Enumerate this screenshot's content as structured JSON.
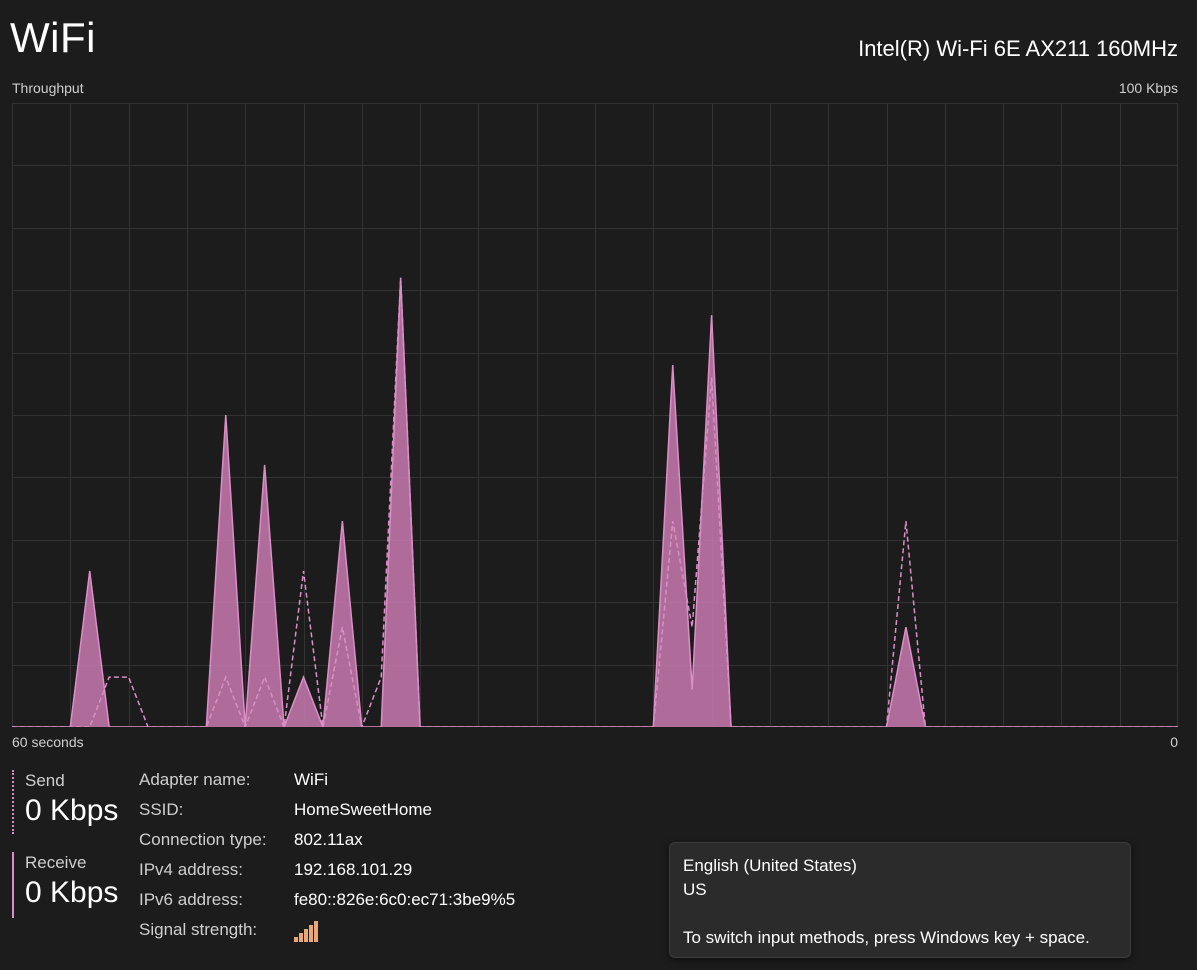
{
  "header": {
    "title": "WiFi",
    "adapter": "Intel(R) Wi-Fi 6E AX211 160MHz"
  },
  "chart_labels": {
    "title": "Throughput",
    "max": "100 Kbps",
    "left": "60 seconds",
    "right": "0"
  },
  "colors": {
    "background": "#1c1c1c",
    "accent": "#d98fc6",
    "fill": "#c97ab0",
    "grid": "#333333"
  },
  "chart_data": {
    "type": "area",
    "title": "Throughput",
    "xlabel": "60 seconds",
    "ylabel": "",
    "xlim": [
      60,
      0
    ],
    "ylim": [
      0,
      100
    ],
    "unit": "Kbps",
    "grid": true,
    "series": [
      {
        "name": "Receive",
        "style": "solid-filled",
        "values": [
          0,
          0,
          0,
          0,
          25,
          0,
          0,
          0,
          0,
          0,
          0,
          50,
          0,
          42,
          0,
          8,
          0,
          33,
          0,
          0,
          72,
          0,
          0,
          0,
          0,
          0,
          0,
          0,
          0,
          0,
          0,
          0,
          0,
          0,
          58,
          6,
          66,
          0,
          0,
          0,
          0,
          0,
          0,
          0,
          0,
          0,
          16,
          0,
          0,
          0,
          0,
          0,
          0,
          0,
          0,
          0,
          0,
          0,
          0,
          0,
          0
        ]
      },
      {
        "name": "Send",
        "style": "dashed",
        "values": [
          0,
          0,
          0,
          0,
          0,
          8,
          8,
          0,
          0,
          0,
          0,
          8,
          0,
          8,
          0,
          25,
          0,
          16,
          0,
          8,
          72,
          0,
          0,
          0,
          0,
          0,
          0,
          0,
          0,
          0,
          0,
          0,
          0,
          0,
          33,
          16,
          56,
          0,
          0,
          0,
          0,
          0,
          0,
          0,
          0,
          0,
          33,
          0,
          0,
          0,
          0,
          0,
          0,
          0,
          0,
          0,
          0,
          0,
          0,
          0,
          0
        ]
      }
    ]
  },
  "stats": {
    "send_label": "Send",
    "send_value": "0 Kbps",
    "receive_label": "Receive",
    "receive_value": "0 Kbps"
  },
  "details": {
    "adapter_name_label": "Adapter name:",
    "adapter_name_value": "WiFi",
    "ssid_label": "SSID:",
    "ssid_value": "HomeSweetHome",
    "connection_type_label": "Connection type:",
    "connection_type_value": "802.11ax",
    "ipv4_label": "IPv4 address:",
    "ipv4_value": "192.168.101.29",
    "ipv6_label": "IPv6 address:",
    "ipv6_value": "fe80::826e:6c0:ec71:3be9%5",
    "signal_label": "Signal strength:",
    "signal_icon": "signal-bars-icon",
    "signal_level": "4 of 5 bars"
  },
  "tooltip": {
    "line1": "English (United States)",
    "line2": "US",
    "line3": "To switch input methods, press Windows key + space."
  }
}
